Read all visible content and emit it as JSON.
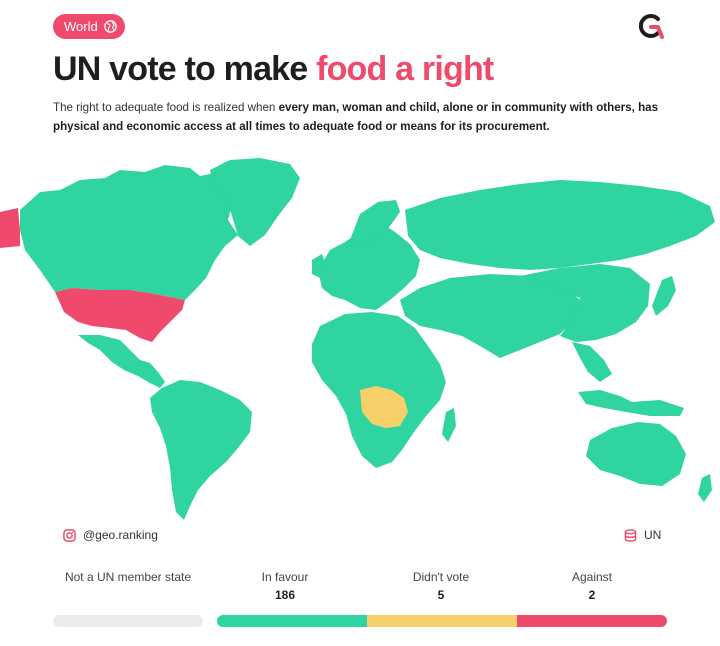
{
  "tag": {
    "label": "World",
    "icon": "globe-icon"
  },
  "logo": {
    "icon": "geo-ranking-logo"
  },
  "title": {
    "main": "UN vote to make ",
    "accent": "food a right"
  },
  "subtitle": {
    "part1": "The right to adequate food is realized when ",
    "bold1": "every man, woman and child, alone or in community with others, has physical and economic access at all times to adequate food or means for its procurement."
  },
  "colors": {
    "in_favour": "#2fd4a0",
    "didnt_vote": "#f8d06a",
    "against": "#ef4a6c",
    "not_member": "#ececec",
    "accent": "#ef4a6c",
    "ocean": "#ffffff"
  },
  "map_legend": {
    "in_favour": "most countries",
    "didnt_vote_highlight": "Democratic Republic of the Congo",
    "against_highlight": [
      "United States",
      "Greenland edge (left)"
    ]
  },
  "badges": {
    "instagram": {
      "icon": "instagram-icon",
      "label": "@geo.ranking"
    },
    "source": {
      "icon": "database-icon",
      "label": "UN"
    }
  },
  "legend": [
    {
      "key": "not_member",
      "label": "Not a UN member state",
      "count": ""
    },
    {
      "key": "in_favour",
      "label": "In favour",
      "count": "186"
    },
    {
      "key": "didnt_vote",
      "label": "Didn't vote",
      "count": "5"
    },
    {
      "key": "against",
      "label": "Against",
      "count": "2"
    }
  ]
}
